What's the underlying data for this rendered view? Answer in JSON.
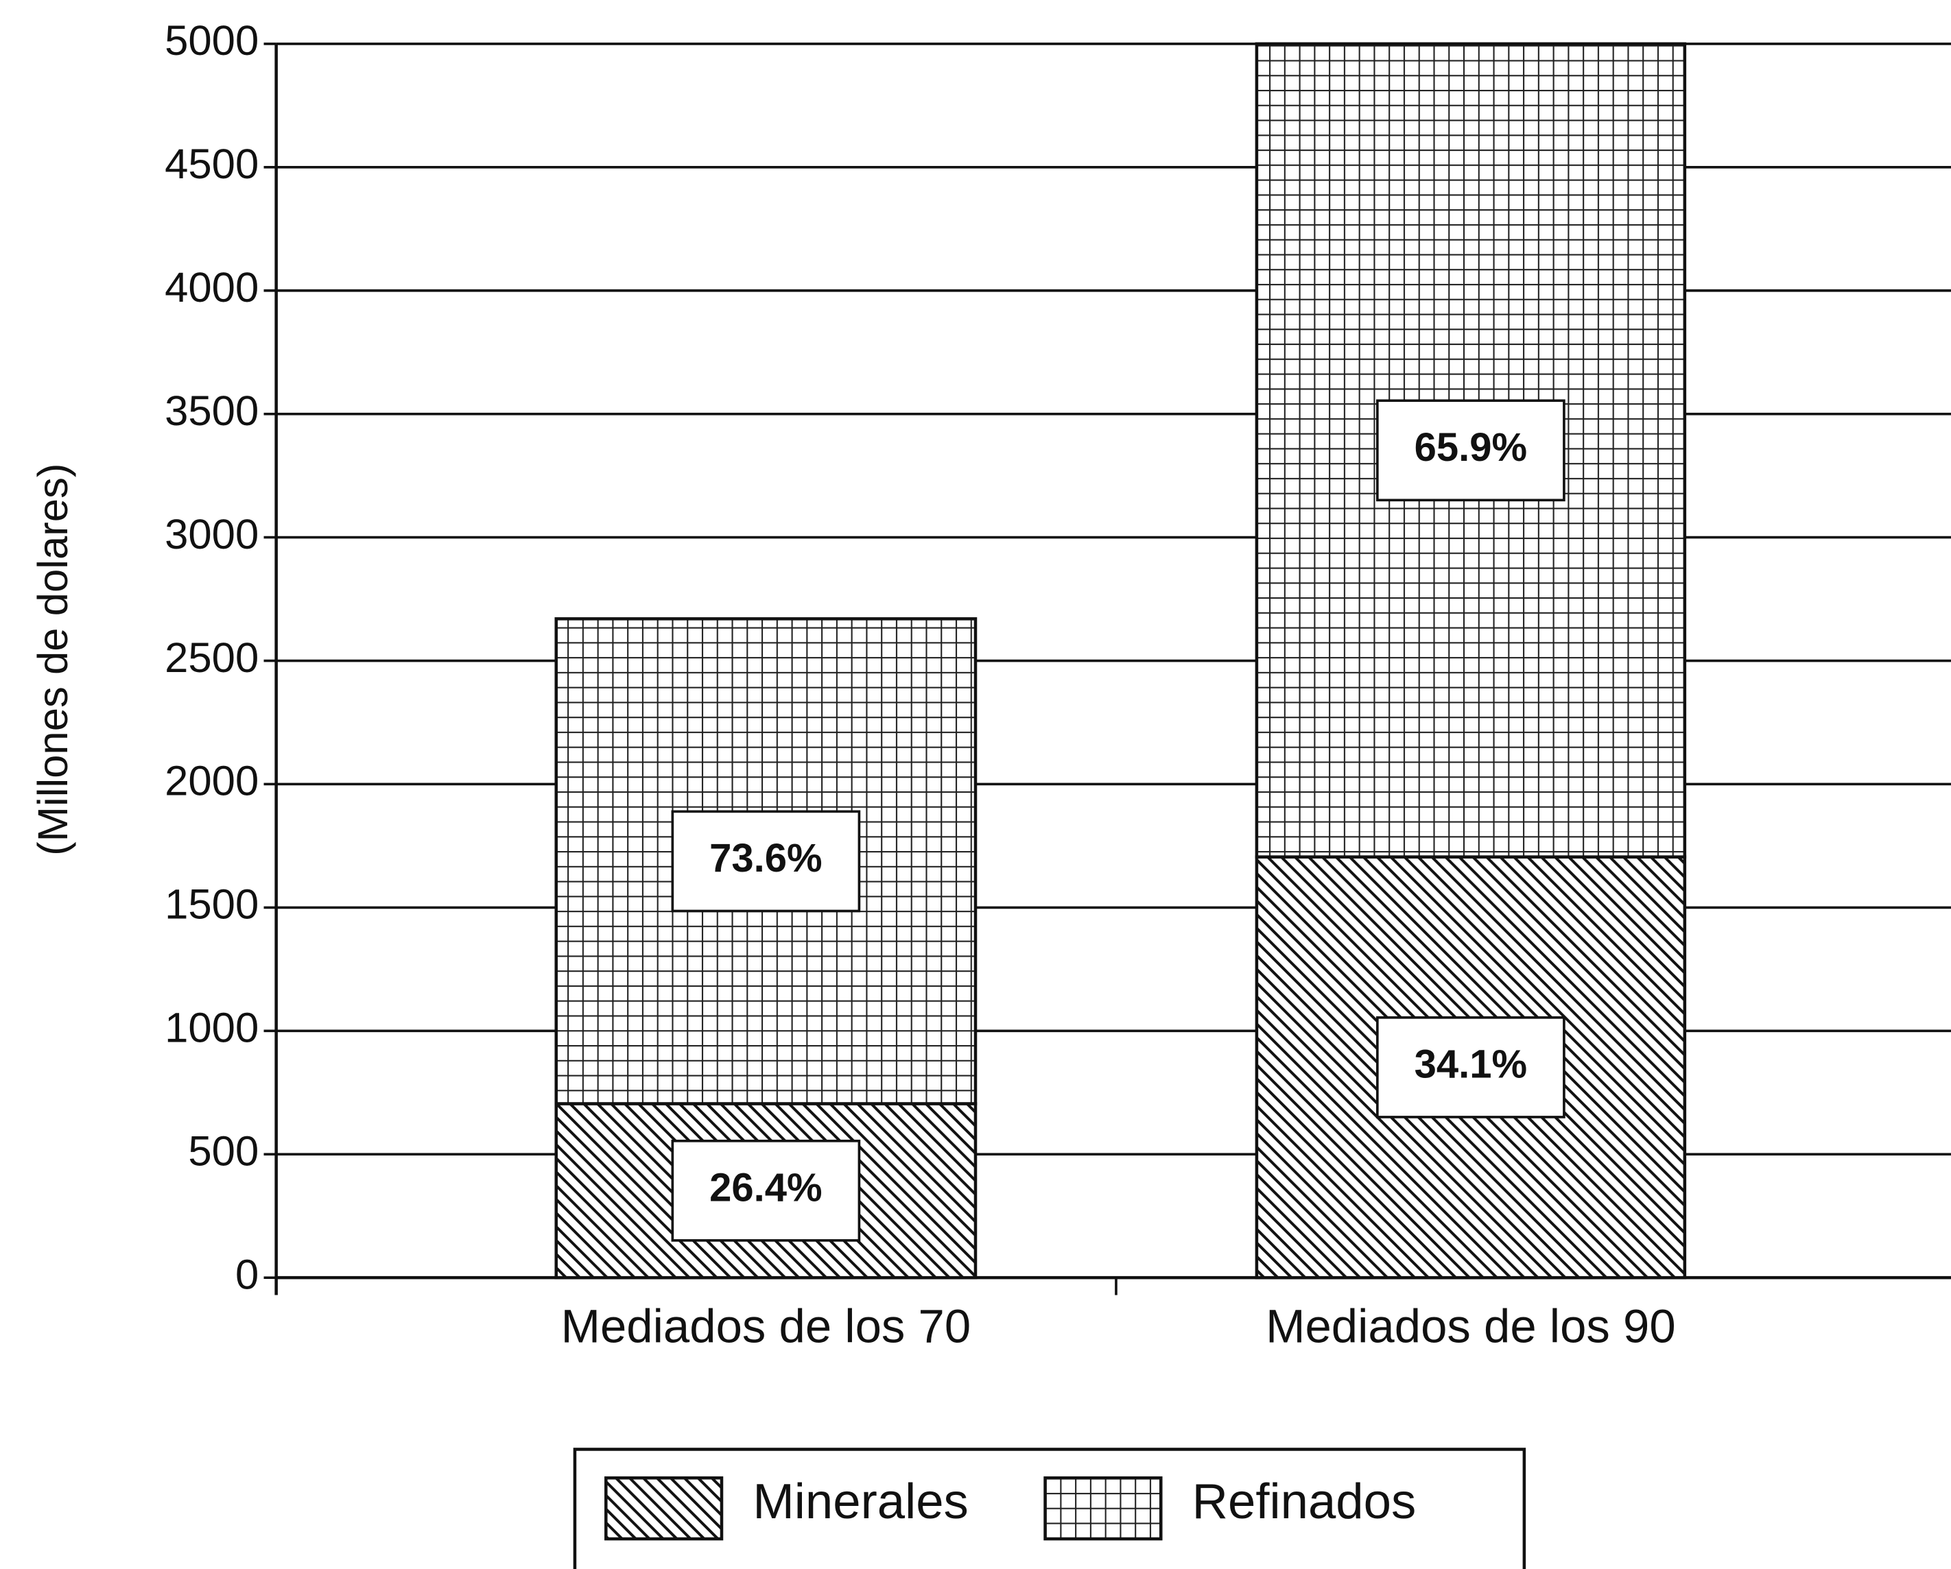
{
  "chart_data": {
    "type": "stacked_bar",
    "y_label": "(Millones de dolares)",
    "categories": [
      "Mediados de los 70",
      "Mediados de los 90"
    ],
    "series": [
      {
        "name": "Minerales",
        "color": "#111111",
        "pattern": "diagonal",
        "values": [
          705,
          1705
        ],
        "segment_labels": [
          "26.4%",
          "34.1%"
        ]
      },
      {
        "name": "Refinados",
        "color": "#111111",
        "pattern": "grid",
        "values": [
          1965,
          3295
        ],
        "segment_labels": [
          "73.6%",
          "65.9%"
        ]
      }
    ],
    "ylim": [
      0,
      5000
    ],
    "yticks": [
      0,
      500,
      1000,
      1500,
      2000,
      2500,
      3000,
      3500,
      4000,
      4500,
      5000
    ],
    "grid": true,
    "legend": "bottom"
  }
}
